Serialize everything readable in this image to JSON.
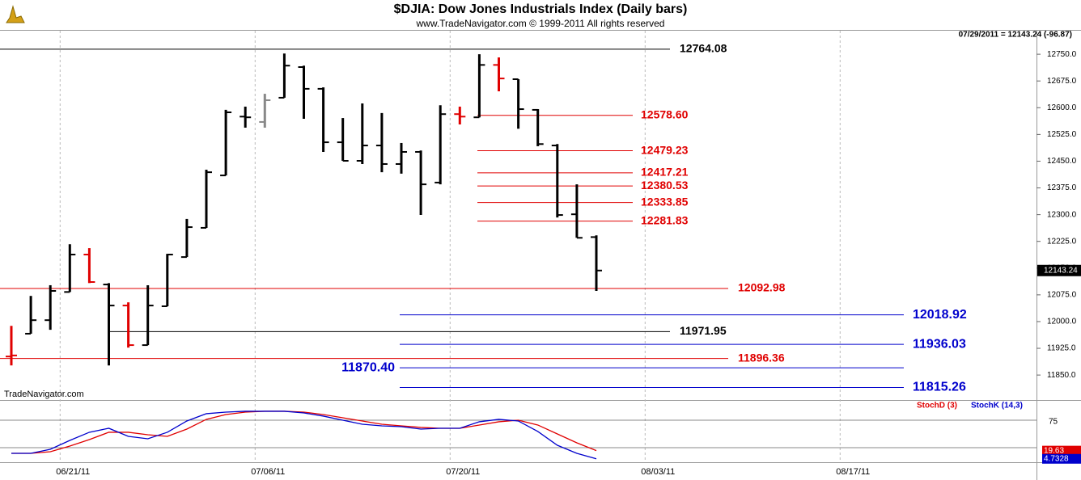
{
  "chart_data": [
    {
      "type": "ohlc",
      "title": "$DJIA:  Dow Jones Industrials Index  (Daily bars)",
      "subtitle": "www.TradeNavigator.com © 1999-2011 All rights reserved",
      "info": "07/29/2011 = 12143.24 (-96.87)",
      "watermark": "TradeNavigator.com",
      "x": [
        "06/16/11",
        "06/17/11",
        "06/20/11",
        "06/21/11",
        "06/22/11",
        "06/23/11",
        "06/24/11",
        "06/27/11",
        "06/28/11",
        "06/29/11",
        "06/30/11",
        "07/01/11",
        "07/05/11",
        "07/06/11",
        "07/07/11",
        "07/08/11",
        "07/11/11",
        "07/12/11",
        "07/13/11",
        "07/14/11",
        "07/15/11",
        "07/18/11",
        "07/19/11",
        "07/20/11",
        "07/21/11",
        "07/22/11",
        "07/25/11",
        "07/26/11",
        "07/27/11",
        "07/28/11",
        "07/29/11"
      ],
      "open": [
        11902,
        11966,
        12004,
        12083,
        12188,
        12104,
        12045,
        11934,
        12043,
        12181,
        12263,
        12410,
        12575,
        12560,
        12628,
        12714,
        12653,
        12503,
        12451,
        12494,
        12442,
        12476,
        12390,
        12582,
        12573,
        12720,
        12680,
        12594,
        12494,
        12301,
        12237
      ],
      "high": [
        11988,
        12072,
        12102,
        12217,
        12206,
        12108,
        12054,
        12102,
        12190,
        12288,
        12426,
        12594,
        12603,
        12639,
        12752,
        12718,
        12657,
        12571,
        12612,
        12585,
        12501,
        12480,
        12607,
        12603,
        12750,
        12741,
        12680,
        12596,
        12498,
        12385,
        12242
      ],
      "low": [
        11877,
        11966,
        11977,
        12083,
        12108,
        11877,
        11927,
        11934,
        12043,
        12181,
        12263,
        12410,
        12544,
        12544,
        12628,
        12569,
        12476,
        12451,
        12442,
        12419,
        12415,
        12299,
        12385,
        12553,
        12573,
        12646,
        12541,
        12492,
        12292,
        12235,
        12086
      ],
      "close": [
        11905,
        12004,
        12086,
        12188,
        12111,
        12045,
        11934,
        12045,
        12188,
        12265,
        12419,
        12587,
        12573,
        12621,
        12718,
        12653,
        12503,
        12451,
        12494,
        12442,
        12476,
        12385,
        12582,
        12575,
        12720,
        12682,
        12596,
        12498,
        12299,
        12235,
        12143.24
      ],
      "bar_colors": [
        "#e00000",
        "#000000",
        "#000000",
        "#000000",
        "#e00000",
        "#000000",
        "#e00000",
        "#000000",
        "#000000",
        "#000000",
        "#000000",
        "#000000",
        "#000000",
        "#888888",
        "#000000",
        "#000000",
        "#000000",
        "#000000",
        "#000000",
        "#000000",
        "#000000",
        "#000000",
        "#000000",
        "#e00000",
        "#000000",
        "#e00000",
        "#000000",
        "#000000",
        "#000000",
        "#000000",
        "#000000"
      ],
      "ylim": [
        11780,
        12816
      ],
      "yticks": [
        {
          "value": 11850,
          "label": "11850.0"
        },
        {
          "value": 11925,
          "label": "11925.0"
        },
        {
          "value": 12000,
          "label": "12000.0"
        },
        {
          "value": 12075,
          "label": "12075.0"
        },
        {
          "value": 12150,
          "label": "12150.0"
        },
        {
          "value": 12225,
          "label": "12225.0"
        },
        {
          "value": 12300,
          "label": "12300.0"
        },
        {
          "value": 12375,
          "label": "12375.0"
        },
        {
          "value": 12450,
          "label": "12450.0"
        },
        {
          "value": 12525,
          "label": "12525.0"
        },
        {
          "value": 12600,
          "label": "12600.0"
        },
        {
          "value": 12675,
          "label": "12675.0"
        },
        {
          "value": 12750,
          "label": "12750.0"
        }
      ],
      "xticks": [
        "06/21/11",
        "07/06/11",
        "07/20/11",
        "08/03/11",
        "08/17/11"
      ],
      "levels": {
        "values": [
          12764.08,
          12578.6,
          12479.23,
          12417.21,
          12380.53,
          12333.85,
          12281.83,
          12092.98,
          12018.92,
          11971.95,
          11936.03,
          11896.36,
          11870.4,
          11815.26
        ],
        "value_labels": [
          "12764.08",
          "12578.60",
          "12479.23",
          "12417.21",
          "12380.53",
          "12333.85",
          "12281.83",
          "12092.98",
          "12018.92",
          "11971.95",
          "11936.03",
          "11896.36",
          "11870.40",
          "11815.26"
        ],
        "colors": [
          "#000000",
          "#e00000",
          "#e00000",
          "#e00000",
          "#e00000",
          "#e00000",
          "#e00000",
          "#e00000",
          "#0000cc",
          "#000000",
          "#0000cc",
          "#e00000",
          "#0000cc",
          "#0000cc"
        ]
      },
      "last_price": {
        "value": 12143.24,
        "label": "12143.24"
      }
    },
    {
      "type": "line",
      "x": [
        "06/16/11",
        "06/17/11",
        "06/20/11",
        "06/21/11",
        "06/22/11",
        "06/23/11",
        "06/24/11",
        "06/27/11",
        "06/28/11",
        "06/29/11",
        "06/30/11",
        "07/01/11",
        "07/05/11",
        "07/06/11",
        "07/07/11",
        "07/08/11",
        "07/11/11",
        "07/12/11",
        "07/13/11",
        "07/14/11",
        "07/15/11",
        "07/18/11",
        "07/19/11",
        "07/20/11",
        "07/21/11",
        "07/22/11",
        "07/25/11",
        "07/26/11",
        "07/27/11",
        "07/28/11",
        "07/29/11"
      ],
      "ylim": [
        0,
        97
      ],
      "yticks": [
        75
      ],
      "hlines": [
        25
      ],
      "series": [
        {
          "name": "StochD (3)",
          "color": "#e00000",
          "values": [
            14.7,
            14.7,
            17.6,
            28,
            39.7,
            53,
            53,
            48.5,
            45.6,
            58.8,
            76.5,
            85.3,
            89.7,
            91.2,
            91.2,
            89.7,
            85.3,
            79.4,
            73.5,
            67.6,
            64.7,
            61.8,
            60.3,
            60.3,
            66.2,
            72.1,
            75,
            66.2,
            50,
            33.8,
            19.63
          ],
          "last_label": "19.63"
        },
        {
          "name": "StochK (14,3)",
          "color": "#0000cc",
          "values": [
            14.7,
            14.7,
            22.1,
            38.2,
            53,
            60.3,
            45.6,
            41.2,
            53,
            73.5,
            86.8,
            89.7,
            91.2,
            91.2,
            91.2,
            88.2,
            82.4,
            75,
            67.6,
            64.7,
            63.2,
            58.8,
            60.3,
            60.3,
            72.1,
            76.5,
            73.5,
            54.4,
            29.4,
            14.7,
            4.7328
          ],
          "last_label": "4.7328"
        }
      ]
    }
  ]
}
